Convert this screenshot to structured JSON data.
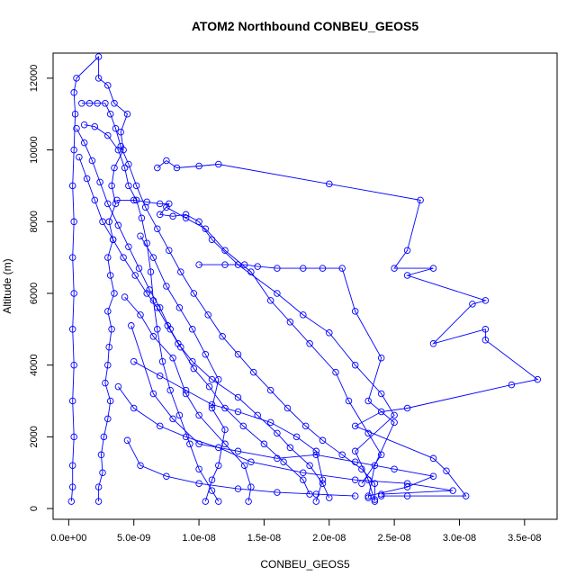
{
  "chart_data": {
    "type": "line",
    "title": "ATOM2 Northbound CONBEU_GEOS5",
    "xlabel": "CONBEU_GEOS5",
    "ylabel": "Altitude (m)",
    "xlim": [
      -1.2e-09,
      3.75e-08
    ],
    "ylim": [
      -300,
      12700
    ],
    "x_ticks": [
      {
        "value": 0,
        "label": "0.0e+00"
      },
      {
        "value": 5e-09,
        "label": "5.0e-09"
      },
      {
        "value": 1e-08,
        "label": "1.0e-08"
      },
      {
        "value": 1.5e-08,
        "label": "1.5e-08"
      },
      {
        "value": 2e-08,
        "label": "2.0e-08"
      },
      {
        "value": 2.5e-08,
        "label": "2.5e-08"
      },
      {
        "value": 3e-08,
        "label": "3.0e-08"
      },
      {
        "value": 3.5e-08,
        "label": "3.5e-08"
      }
    ],
    "y_ticks": [
      {
        "value": 0,
        "label": "0"
      },
      {
        "value": 2000,
        "label": "2000"
      },
      {
        "value": 4000,
        "label": "4000"
      },
      {
        "value": 6000,
        "label": "6000"
      },
      {
        "value": 8000,
        "label": "8000"
      },
      {
        "value": 10000,
        "label": "10000"
      },
      {
        "value": 12000,
        "label": "12000"
      }
    ],
    "series_color": "#0000ff",
    "marker": "open-circle",
    "grid": false,
    "series": [
      {
        "points": [
          [
            2e-10,
            200
          ],
          [
            3e-10,
            600
          ],
          [
            3e-10,
            1200
          ],
          [
            4e-10,
            2000
          ],
          [
            3e-10,
            3000
          ],
          [
            4e-10,
            4000
          ],
          [
            3e-10,
            5000
          ],
          [
            4e-10,
            6000
          ],
          [
            3e-10,
            7000
          ],
          [
            4e-10,
            8000
          ],
          [
            3e-10,
            9000
          ],
          [
            4e-10,
            10000
          ],
          [
            5e-10,
            11000
          ],
          [
            4e-10,
            11600
          ],
          [
            6e-10,
            12000
          ],
          [
            2.3e-09,
            12600
          ],
          [
            2.3e-09,
            12000
          ],
          [
            3e-09,
            11800
          ],
          [
            3.5e-09,
            11300
          ],
          [
            4.5e-09,
            11000
          ],
          [
            4e-09,
            10500
          ],
          [
            4.2e-09,
            10000
          ],
          [
            3.5e-09,
            9500
          ],
          [
            3.3e-09,
            9000
          ],
          [
            3.6e-09,
            8500
          ],
          [
            3.1e-09,
            8000
          ],
          [
            3.4e-09,
            7500
          ],
          [
            3e-09,
            7000
          ],
          [
            3.2e-09,
            6500
          ],
          [
            3.5e-09,
            6000
          ],
          [
            3e-09,
            5500
          ],
          [
            3.3e-09,
            5000
          ],
          [
            3.1e-09,
            4500
          ],
          [
            3e-09,
            4000
          ],
          [
            2.8e-09,
            3500
          ],
          [
            3.2e-09,
            3000
          ],
          [
            3e-09,
            2500
          ],
          [
            2.7e-09,
            2000
          ],
          [
            2.5e-09,
            1500
          ],
          [
            2.6e-09,
            1000
          ],
          [
            2.3e-09,
            600
          ],
          [
            2.3e-09,
            200
          ]
        ]
      },
      {
        "points": [
          [
            3.7e-09,
            8600
          ],
          [
            5e-09,
            8600
          ],
          [
            6e-09,
            8550
          ],
          [
            7e-09,
            8500
          ],
          [
            7.7e-09,
            8500
          ],
          [
            7e-09,
            8200
          ],
          [
            8e-09,
            8150
          ],
          [
            9e-09,
            8200
          ],
          [
            1e-08,
            8000
          ],
          [
            1.1e-08,
            7500
          ],
          [
            1.3e-08,
            6800
          ],
          [
            1.6e-08,
            6000
          ],
          [
            1.8e-08,
            5400
          ],
          [
            2e-08,
            4900
          ],
          [
            2.2e-08,
            4000
          ],
          [
            2.4e-08,
            3200
          ],
          [
            2.5e-08,
            2600
          ],
          [
            2.2e-08,
            1600
          ],
          [
            2.3e-08,
            800
          ],
          [
            2.35e-08,
            200
          ]
        ]
      },
      {
        "points": [
          [
            6.8e-09,
            9500
          ],
          [
            7.5e-09,
            9700
          ],
          [
            8.3e-09,
            9500
          ],
          [
            1e-08,
            9550
          ],
          [
            1.15e-08,
            9600
          ],
          [
            2e-08,
            9050
          ],
          [
            2.7e-08,
            8600
          ],
          [
            2.6e-08,
            7200
          ],
          [
            2.5e-08,
            6700
          ],
          [
            2.8e-08,
            6700
          ],
          [
            2.6e-08,
            6500
          ],
          [
            3.2e-08,
            5800
          ],
          [
            3.1e-08,
            5700
          ],
          [
            2.8e-08,
            4600
          ],
          [
            3.2e-08,
            5000
          ],
          [
            3.2e-08,
            4700
          ],
          [
            3.6e-08,
            3600
          ],
          [
            3.4e-08,
            3450
          ],
          [
            2.6e-08,
            2800
          ],
          [
            2.4e-08,
            2700
          ],
          [
            2.2e-08,
            2300
          ],
          [
            2.8e-08,
            1400
          ],
          [
            2.9e-08,
            1050
          ],
          [
            3.05e-08,
            350
          ],
          [
            2.6e-08,
            350
          ],
          [
            2.4e-08,
            350
          ]
        ]
      },
      {
        "points": [
          [
            1e-08,
            6800
          ],
          [
            1.2e-08,
            6800
          ],
          [
            1.35e-08,
            6800
          ],
          [
            1.45e-08,
            6750
          ],
          [
            1.6e-08,
            6700
          ],
          [
            1.8e-08,
            6700
          ],
          [
            1.95e-08,
            6700
          ],
          [
            2.1e-08,
            6700
          ],
          [
            2.2e-08,
            5500
          ],
          [
            2.4e-08,
            4200
          ],
          [
            2.3e-08,
            3000
          ],
          [
            2.5e-08,
            2400
          ],
          [
            2.35e-08,
            1200
          ],
          [
            2.3e-08,
            300
          ]
        ]
      },
      {
        "points": [
          [
            4.3e-09,
            5900
          ],
          [
            5.5e-09,
            5400
          ],
          [
            6.5e-09,
            4800
          ],
          [
            8e-09,
            4200
          ],
          [
            9e-09,
            3200
          ],
          [
            1e-08,
            2600
          ],
          [
            1.2e-08,
            1800
          ],
          [
            1.35e-08,
            1200
          ],
          [
            1.4e-08,
            600
          ],
          [
            1.38e-08,
            200
          ]
        ]
      },
      {
        "points": [
          [
            5e-09,
            4100
          ],
          [
            7e-09,
            3700
          ],
          [
            9e-09,
            3300
          ],
          [
            1.1e-08,
            2900
          ],
          [
            1.3e-08,
            2700
          ],
          [
            1.55e-08,
            2400
          ],
          [
            1.75e-08,
            2000
          ],
          [
            1.9e-08,
            1600
          ],
          [
            1.95e-08,
            800
          ],
          [
            1.9e-08,
            200
          ]
        ]
      },
      {
        "points": [
          [
            5.5e-09,
            7600
          ],
          [
            6.5e-09,
            7000
          ],
          [
            7.5e-09,
            6200
          ],
          [
            8.5e-09,
            5600
          ],
          [
            9.5e-09,
            5000
          ],
          [
            1.05e-08,
            4300
          ],
          [
            1.15e-08,
            3600
          ],
          [
            1.1e-08,
            2800
          ],
          [
            1.2e-08,
            2200
          ],
          [
            1.15e-08,
            1200
          ],
          [
            1.1e-08,
            800
          ],
          [
            1.05e-08,
            200
          ]
        ]
      },
      {
        "points": [
          [
            4.8e-09,
            5100
          ],
          [
            6.5e-09,
            3200
          ],
          [
            8e-09,
            2500
          ],
          [
            1e-08,
            1800
          ],
          [
            1.3e-08,
            1600
          ],
          [
            1.6e-08,
            1400
          ],
          [
            1.9e-08,
            1500
          ],
          [
            2.2e-08,
            1300
          ],
          [
            2.5e-08,
            1100
          ],
          [
            2.8e-08,
            900
          ],
          [
            2.6e-08,
            600
          ],
          [
            2.3e-08,
            350
          ]
        ]
      },
      {
        "points": [
          [
            3.8e-09,
            3400
          ],
          [
            5e-09,
            2800
          ],
          [
            7e-09,
            2300
          ],
          [
            9e-09,
            2000
          ],
          [
            1.15e-08,
            1700
          ],
          [
            1.4e-08,
            1300
          ],
          [
            1.8e-08,
            1000
          ],
          [
            2.2e-08,
            800
          ],
          [
            2.6e-08,
            700
          ],
          [
            2.95e-08,
            500
          ],
          [
            2.4e-08,
            400
          ]
        ]
      },
      {
        "points": [
          [
            4.5e-09,
            1900
          ],
          [
            5.5e-09,
            1200
          ],
          [
            7.5e-09,
            900
          ],
          [
            1e-08,
            700
          ],
          [
            1.3e-08,
            550
          ],
          [
            1.6e-08,
            450
          ],
          [
            1.9e-08,
            400
          ],
          [
            2.2e-08,
            350
          ]
        ]
      },
      {
        "points": [
          [
            7.5e-09,
            8400
          ],
          [
            9e-09,
            8100
          ],
          [
            1.05e-08,
            7800
          ],
          [
            1.2e-08,
            7200
          ],
          [
            1.4e-08,
            6600
          ],
          [
            1.55e-08,
            5800
          ],
          [
            1.7e-08,
            5200
          ],
          [
            1.85e-08,
            4600
          ],
          [
            2.05e-08,
            3800
          ],
          [
            2.15e-08,
            3000
          ],
          [
            2.3e-08,
            2100
          ],
          [
            2.4e-08,
            1500
          ],
          [
            2.25e-08,
            700
          ]
        ]
      },
      {
        "points": [
          [
            1.2e-09,
            10700
          ],
          [
            2e-09,
            10650
          ],
          [
            3e-09,
            10400
          ],
          [
            3.8e-09,
            10000
          ],
          [
            4.3e-09,
            9500
          ],
          [
            4.6e-09,
            9000
          ],
          [
            5.2e-09,
            8600
          ],
          [
            5.6e-09,
            8100
          ],
          [
            6e-09,
            7400
          ],
          [
            6.3e-09,
            6600
          ],
          [
            6.5e-09,
            5800
          ],
          [
            6.8e-09,
            5000
          ],
          [
            7.2e-09,
            4100
          ],
          [
            7.8e-09,
            3300
          ],
          [
            8.5e-09,
            2600
          ],
          [
            9.3e-09,
            1800
          ],
          [
            1e-08,
            1100
          ],
          [
            1.1e-08,
            500
          ],
          [
            1.15e-08,
            200
          ]
        ]
      },
      {
        "points": [
          [
            8e-10,
            9800
          ],
          [
            1.4e-09,
            9200
          ],
          [
            2e-09,
            8600
          ],
          [
            2.6e-09,
            8000
          ],
          [
            3.4e-09,
            7500
          ],
          [
            4.2e-09,
            7000
          ],
          [
            5.1e-09,
            6500
          ],
          [
            6e-09,
            6000
          ],
          [
            6.8e-09,
            5600
          ],
          [
            7.6e-09,
            5100
          ],
          [
            8.4e-09,
            4600
          ],
          [
            9.5e-09,
            4100
          ],
          [
            1.1e-08,
            3600
          ],
          [
            1.3e-08,
            3100
          ],
          [
            1.45e-08,
            2600
          ],
          [
            1.6e-08,
            2100
          ],
          [
            1.7e-08,
            1700
          ],
          [
            1.85e-08,
            1200
          ],
          [
            1.95e-08,
            700
          ],
          [
            2e-08,
            300
          ]
        ]
      },
      {
        "points": [
          [
            6e-10,
            10600
          ],
          [
            1.2e-09,
            10200
          ],
          [
            1.8e-09,
            9700
          ],
          [
            2.4e-09,
            9100
          ],
          [
            3e-09,
            8500
          ],
          [
            3.8e-09,
            7900
          ],
          [
            4.6e-09,
            7300
          ],
          [
            5.4e-09,
            6700
          ],
          [
            6.2e-09,
            6100
          ],
          [
            7e-09,
            5600
          ],
          [
            7.8e-09,
            5000
          ],
          [
            8.6e-09,
            4500
          ],
          [
            9.6e-09,
            3900
          ],
          [
            1.08e-08,
            3400
          ],
          [
            1.2e-08,
            2800
          ],
          [
            1.34e-08,
            2300
          ],
          [
            1.5e-08,
            1800
          ],
          [
            1.65e-08,
            1300
          ],
          [
            1.8e-08,
            800
          ],
          [
            1.85e-08,
            400
          ]
        ]
      },
      {
        "points": [
          [
            1e-09,
            11300
          ],
          [
            1.6e-09,
            11300
          ],
          [
            2.2e-09,
            11300
          ],
          [
            2.8e-09,
            11300
          ],
          [
            3.2e-09,
            11000
          ],
          [
            3.6e-09,
            10600
          ],
          [
            4e-09,
            10100
          ],
          [
            4.6e-09,
            9600
          ],
          [
            5.2e-09,
            9000
          ],
          [
            5.9e-09,
            8400
          ],
          [
            6.8e-09,
            7800
          ],
          [
            7.7e-09,
            7200
          ],
          [
            8.6e-09,
            6600
          ],
          [
            9.6e-09,
            6000
          ],
          [
            1.07e-08,
            5400
          ],
          [
            1.18e-08,
            4800
          ],
          [
            1.3e-08,
            4300
          ],
          [
            1.42e-08,
            3800
          ],
          [
            1.55e-08,
            3300
          ],
          [
            1.68e-08,
            2800
          ],
          [
            1.82e-08,
            2300
          ],
          [
            1.95e-08,
            1900
          ],
          [
            2.1e-08,
            1500
          ],
          [
            2.25e-08,
            1100
          ],
          [
            2.35e-08,
            700
          ],
          [
            2.35e-08,
            250
          ]
        ]
      }
    ]
  }
}
